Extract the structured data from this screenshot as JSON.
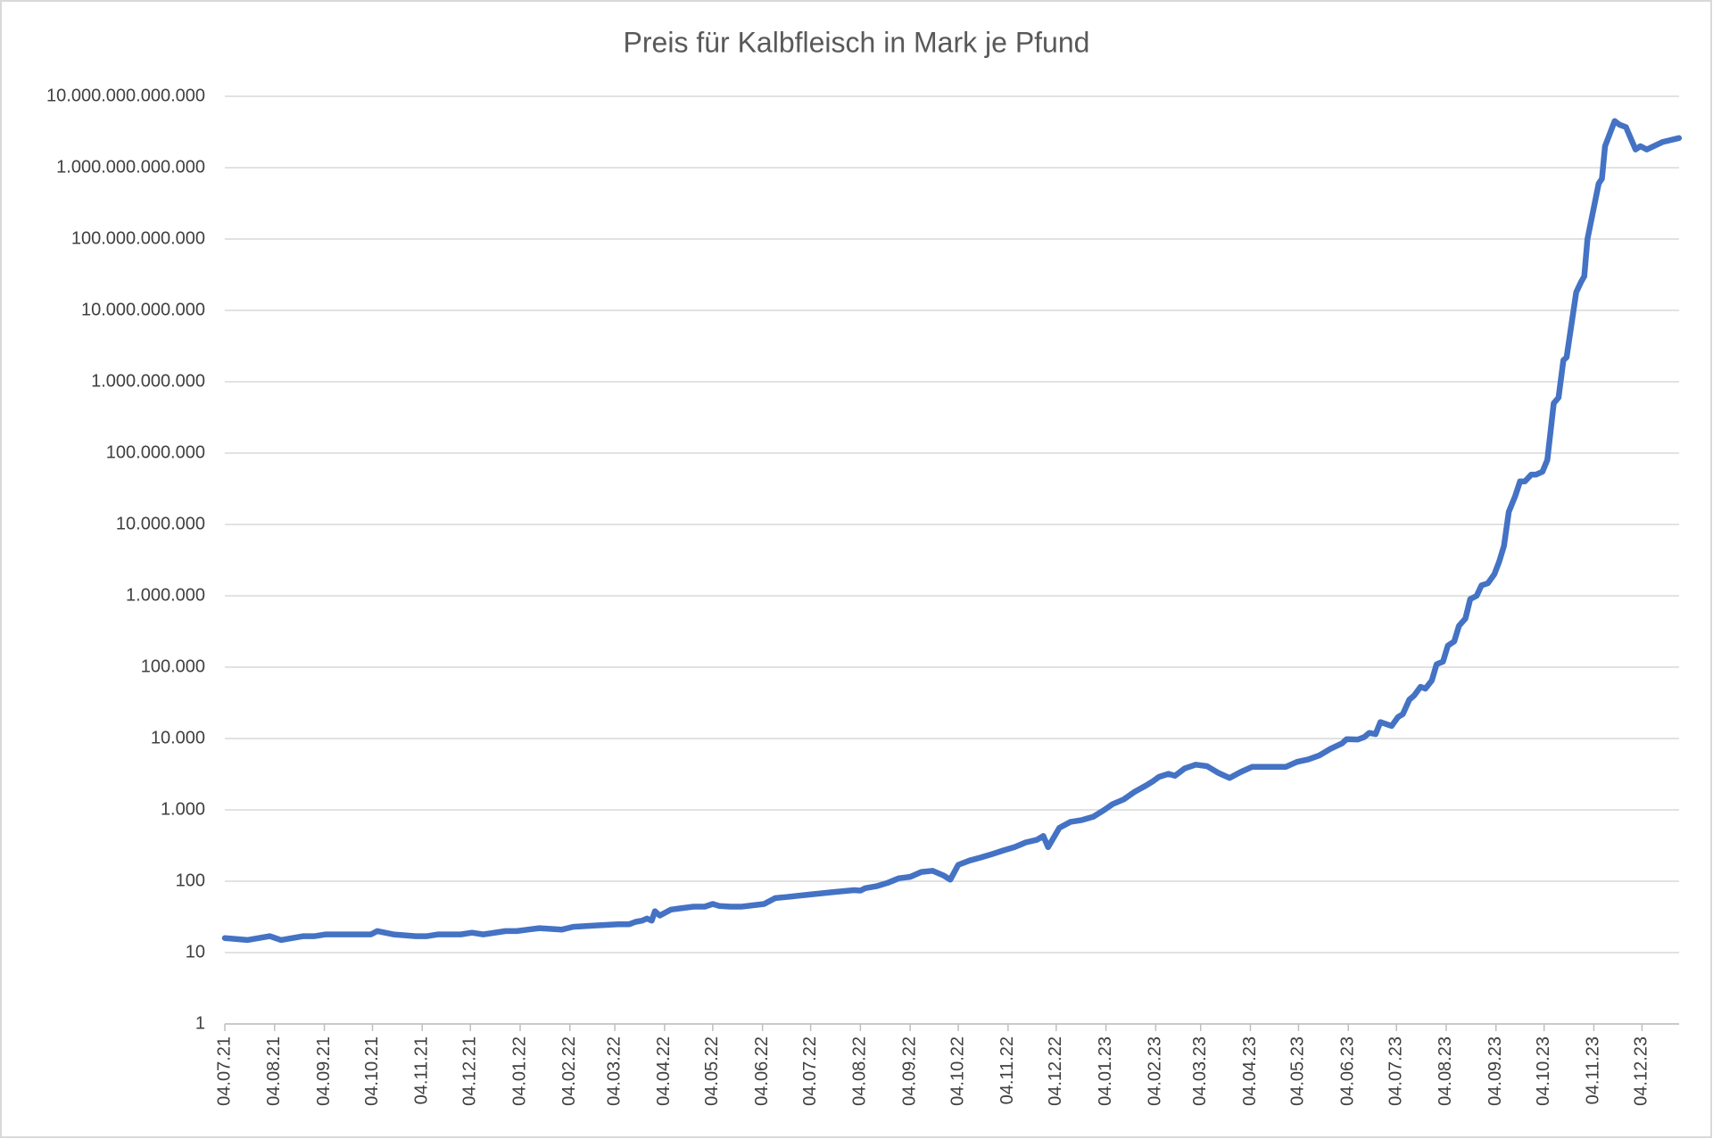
{
  "chart_data": {
    "type": "line",
    "title": "Preis für Kalbfleisch in Mark je Pfund",
    "x": [
      "04.07.21",
      "18.07.21",
      "01.08.21",
      "08.08.21",
      "22.08.21",
      "29.08.21",
      "05.09.21",
      "26.09.21",
      "03.10.21",
      "07.10.21",
      "17.10.21",
      "31.10.21",
      "07.11.21",
      "14.11.21",
      "28.11.21",
      "05.12.21",
      "12.12.21",
      "26.12.21",
      "02.01.22",
      "09.01.22",
      "16.01.22",
      "30.01.22",
      "06.02.22",
      "20.02.22",
      "06.03.22",
      "13.03.22",
      "17.03.22",
      "21.03.22",
      "24.03.22",
      "27.03.22",
      "29.03.22",
      "01.04.22",
      "08.04.22",
      "15.04.22",
      "22.04.22",
      "29.04.22",
      "04.05.22",
      "08.05.22",
      "15.05.22",
      "22.05.22",
      "29.05.22",
      "05.06.22",
      "12.06.22",
      "19.06.22",
      "03.07.22",
      "17.07.22",
      "31.07.22",
      "04.08.22",
      "07.08.22",
      "14.08.22",
      "21.08.22",
      "28.08.22",
      "04.09.22",
      "11.09.22",
      "18.09.22",
      "25.09.22",
      "29.09.22",
      "04.10.22",
      "11.10.22",
      "18.10.22",
      "25.10.22",
      "01.11.22",
      "08.11.22",
      "15.11.22",
      "22.11.22",
      "26.11.22",
      "29.11.22",
      "06.12.22",
      "13.12.22",
      "20.12.22",
      "27.12.22",
      "03.01.23",
      "08.01.23",
      "15.01.23",
      "22.01.23",
      "29.01.23",
      "02.02.23",
      "06.02.23",
      "12.02.23",
      "16.02.23",
      "22.02.23",
      "01.03.23",
      "08.03.23",
      "15.03.23",
      "22.03.23",
      "29.03.23",
      "05.04.23",
      "19.04.23",
      "26.04.23",
      "03.05.23",
      "10.05.23",
      "17.05.23",
      "24.05.23",
      "31.05.23",
      "03.06.23",
      "10.06.23",
      "14.06.23",
      "17.06.23",
      "21.06.23",
      "24.06.23",
      "01.07.23",
      "05.07.23",
      "08.07.23",
      "12.07.23",
      "15.07.23",
      "19.07.23",
      "22.07.23",
      "26.07.23",
      "29.07.23",
      "02.08.23",
      "05.08.23",
      "09.08.23",
      "12.08.23",
      "16.08.23",
      "19.08.23",
      "23.08.23",
      "26.08.23",
      "30.08.23",
      "03.09.23",
      "06.09.23",
      "09.09.23",
      "12.09.23",
      "16.09.23",
      "19.09.23",
      "22.09.23",
      "26.09.23",
      "29.09.23",
      "03.10.23",
      "06.10.23",
      "10.10.23",
      "13.10.23",
      "16.10.23",
      "18.10.23",
      "24.10.23",
      "27.10.23",
      "29.10.23",
      "31.10.23",
      "07.11.23",
      "09.11.23",
      "11.11.23",
      "17.11.23",
      "20.11.23",
      "24.11.23",
      "30.11.23",
      "03.12.23",
      "07.12.23",
      "17.12.23",
      "27.12.23"
    ],
    "series": [
      {
        "name": "Preis",
        "color": "#4472c4",
        "values": [
          16,
          15,
          17,
          15,
          17,
          17,
          18,
          18,
          18,
          20,
          18,
          17,
          17,
          18,
          18,
          19,
          18,
          20,
          20,
          21,
          22,
          21,
          23,
          24,
          25,
          25,
          27,
          28,
          30,
          28,
          38,
          33,
          40,
          42,
          44,
          44,
          48,
          45,
          44,
          44,
          46,
          48,
          58,
          60,
          65,
          70,
          75,
          74,
          80,
          85,
          95,
          110,
          115,
          135,
          140,
          120,
          105,
          170,
          195,
          215,
          240,
          270,
          300,
          350,
          380,
          430,
          300,
          560,
          680,
          720,
          800,
          1000,
          1200,
          1400,
          1800,
          2200,
          2500,
          2900,
          3200,
          3000,
          3800,
          4300,
          4100,
          3300,
          2800,
          3400,
          4000,
          4000,
          4000,
          4700,
          5100,
          5800,
          7200,
          8500,
          9800,
          9700,
          10500,
          12000,
          11500,
          17000,
          15000,
          20000,
          22000,
          35000,
          40000,
          53000,
          50000,
          65000,
          110000,
          120000,
          200000,
          230000,
          380000,
          480000,
          900000,
          1000000,
          1400000,
          1500000,
          2000000,
          3000000,
          5000000,
          15000000,
          25000000,
          40000000,
          40000000,
          50000000,
          50000000,
          55000000,
          80000000,
          500000000,
          600000000,
          2000000000,
          2200000000,
          18000000000,
          25000000000,
          30000000000,
          100000000000,
          600000000000,
          700000000000,
          2000000000000,
          4500000000000,
          4000000000000,
          3700000000000,
          1800000000000,
          2000000000000,
          1800000000000,
          2300000000000,
          2600000000000
        ]
      }
    ],
    "xlim": [
      "04.07.21",
      "27.12.23"
    ],
    "xticks": [
      "04.07.21",
      "04.08.21",
      "04.09.21",
      "04.10.21",
      "04.11.21",
      "04.12.21",
      "04.01.22",
      "04.02.22",
      "04.03.22",
      "04.04.22",
      "04.05.22",
      "04.06.22",
      "04.07.22",
      "04.08.22",
      "04.09.22",
      "04.10.22",
      "04.11.22",
      "04.12.22",
      "04.01.23",
      "04.02.23",
      "04.03.23",
      "04.04.23",
      "04.05.23",
      "04.06.23",
      "04.07.23",
      "04.08.23",
      "04.09.23",
      "04.10.23",
      "04.11.23",
      "04.12.23"
    ],
    "ylim": [
      1,
      10000000000000
    ],
    "yscale": "log",
    "yticks": [
      1,
      10,
      100,
      {
        "value": 1000,
        "label": "1.000"
      },
      {
        "value": 10000,
        "label": "10.000"
      },
      {
        "value": 100000,
        "label": "100.000"
      },
      {
        "value": 1000000,
        "label": "1.000.000"
      },
      {
        "value": 10000000,
        "label": "10.000.000"
      },
      {
        "value": 100000000,
        "label": "100.000.000"
      },
      {
        "value": 1000000000,
        "label": "1.000.000.000"
      },
      {
        "value": 10000000000,
        "label": "10.000.000.000"
      },
      {
        "value": 100000000000,
        "label": "100.000.000.000"
      },
      {
        "value": 1000000000000,
        "label": "1.000.000.000.000"
      },
      {
        "value": 10000000000000,
        "label": "10.000.000.000.000"
      }
    ],
    "grid": true
  }
}
